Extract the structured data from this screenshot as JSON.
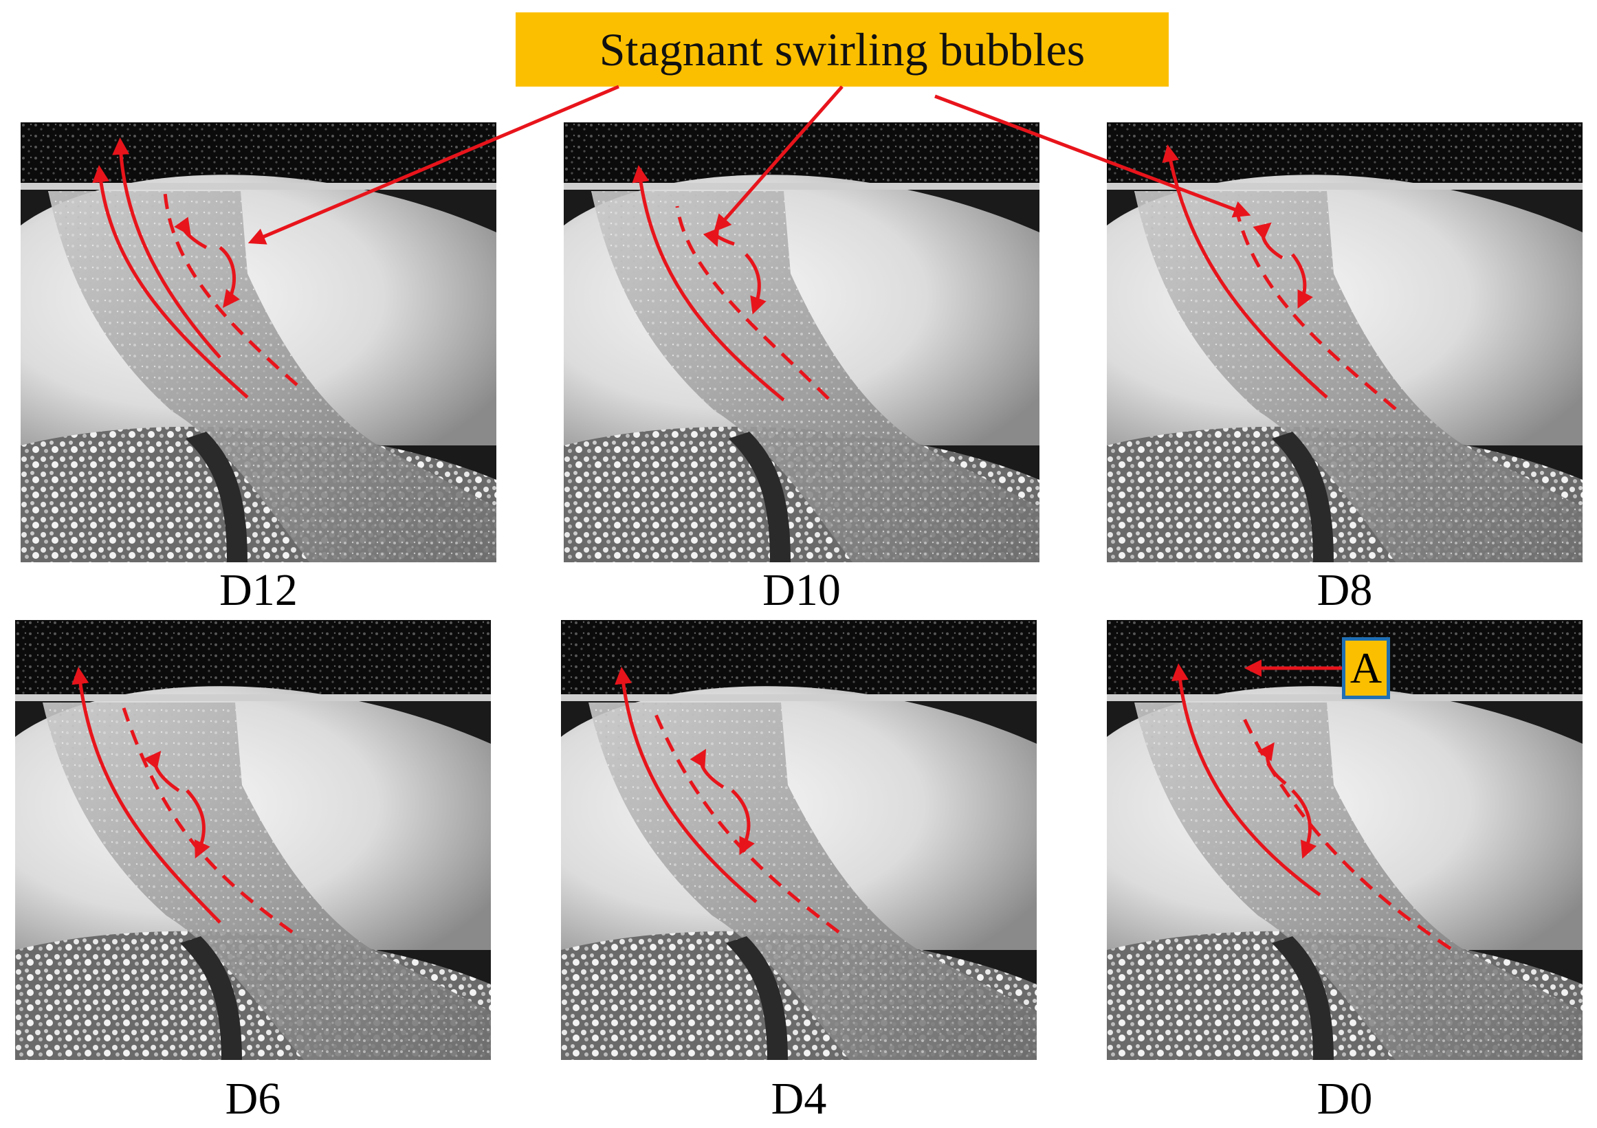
{
  "callout": {
    "text": "Stagnant swirling bubbles"
  },
  "panels": [
    {
      "label": "D12"
    },
    {
      "label": "D10"
    },
    {
      "label": "D8"
    },
    {
      "label": "D6"
    },
    {
      "label": "D4"
    },
    {
      "label": "D0"
    }
  ],
  "marker": {
    "text": "A"
  },
  "colors": {
    "arrow": "#e8141b",
    "callout_bg": "#fcbf00",
    "marker_border": "#1f6fb3"
  }
}
